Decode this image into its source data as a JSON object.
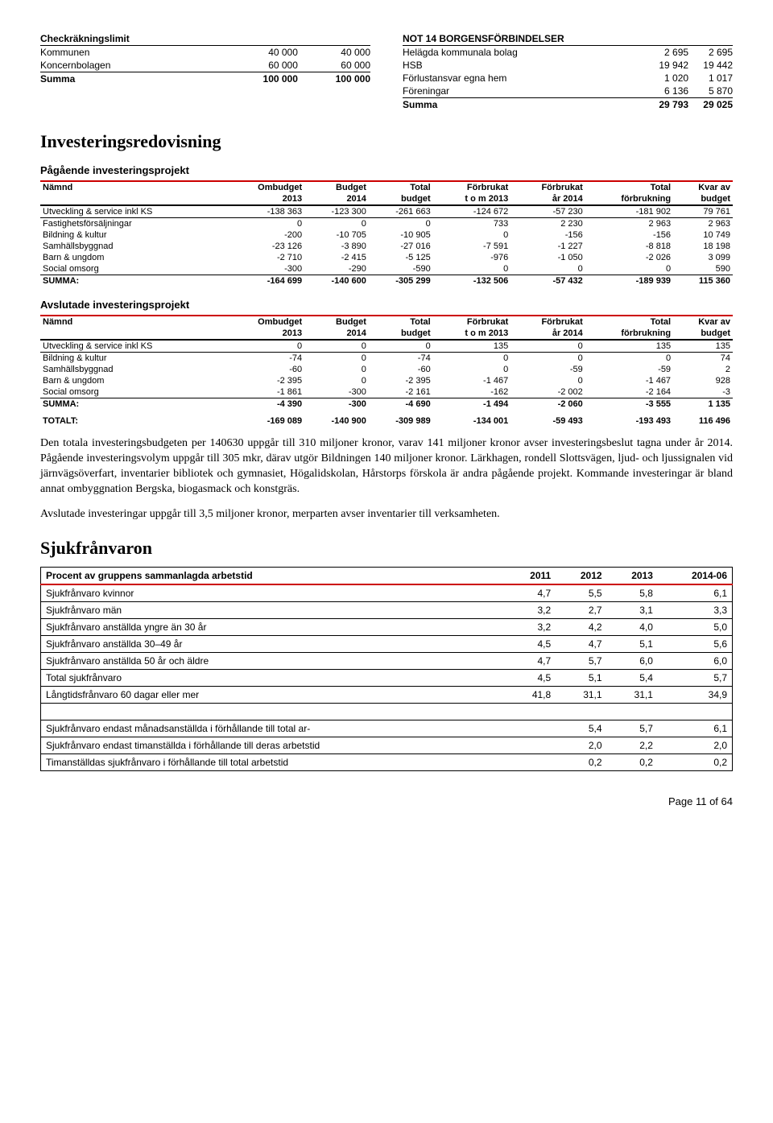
{
  "top_left": {
    "header": "Checkräkningslimit",
    "rows": [
      {
        "label": "Kommunen",
        "v1": "40 000",
        "v2": "40 000"
      },
      {
        "label": "Koncernbolagen",
        "v1": "60 000",
        "v2": "60 000"
      }
    ],
    "sum": {
      "label": "Summa",
      "v1": "100 000",
      "v2": "100 000"
    }
  },
  "top_right": {
    "header": "NOT 14 BORGENSFÖRBINDELSER",
    "rows": [
      {
        "label": "Helägda kommunala bolag",
        "v1": "2 695",
        "v2": "2 695"
      },
      {
        "label": "HSB",
        "v1": "19 942",
        "v2": "19 442"
      },
      {
        "label": "Förlustansvar egna hem",
        "v1": "1 020",
        "v2": "1 017"
      },
      {
        "label": "Föreningar",
        "v1": "6 136",
        "v2": "5 870"
      }
    ],
    "sum": {
      "label": "Summa",
      "v1": "29 793",
      "v2": "29 025"
    }
  },
  "inv_heading": "Investeringsredovisning",
  "pagaende_label": "Pågående investeringsprojekt",
  "avslutade_label": "Avslutade investeringsprojekt",
  "big_headers1": [
    "Nämnd",
    "Ombudget",
    "Budget",
    "Total",
    "Förbrukat",
    "Förbrukat",
    "Total",
    "Kvar av"
  ],
  "big_headers2": [
    "",
    "2013",
    "2014",
    "budget",
    "t o m 2013",
    "år  2014",
    "förbrukning",
    "budget"
  ],
  "pagaende_rows": [
    {
      "n": "Utveckling & service inkl KS",
      "c": [
        "-138 363",
        "-123 300",
        "-261 663",
        "-124 672",
        "-57 230",
        "-181 902",
        "79 761"
      ]
    },
    {
      "n": "Fastighetsförsäljningar",
      "c": [
        "0",
        "0",
        "0",
        "733",
        "2 230",
        "2 963",
        "2 963"
      ]
    },
    {
      "n": "Bildning & kultur",
      "c": [
        "-200",
        "-10 705",
        "-10 905",
        "0",
        "-156",
        "-156",
        "10 749"
      ]
    },
    {
      "n": "Samhällsbyggnad",
      "c": [
        "-23 126",
        "-3 890",
        "-27 016",
        "-7 591",
        "-1 227",
        "-8 818",
        "18 198"
      ]
    },
    {
      "n": "Barn & ungdom",
      "c": [
        "-2 710",
        "-2 415",
        "-5 125",
        "-976",
        "-1 050",
        "-2 026",
        "3 099"
      ]
    },
    {
      "n": "Social omsorg",
      "c": [
        "-300",
        "-290",
        "-590",
        "0",
        "0",
        "0",
        "590"
      ]
    }
  ],
  "pagaende_sum": {
    "n": "SUMMA:",
    "c": [
      "-164 699",
      "-140 600",
      "-305 299",
      "-132 506",
      "-57 432",
      "-189 939",
      "115 360"
    ]
  },
  "avslutade_rows": [
    {
      "n": "Utveckling & service inkl KS",
      "c": [
        "0",
        "0",
        "0",
        "135",
        "0",
        "135",
        "135"
      ]
    },
    {
      "n": "Bildning & kultur",
      "c": [
        "-74",
        "0",
        "-74",
        "0",
        "0",
        "0",
        "74"
      ]
    },
    {
      "n": "Samhällsbyggnad",
      "c": [
        "-60",
        "0",
        "-60",
        "0",
        "-59",
        "-59",
        "2"
      ]
    },
    {
      "n": "Barn & ungdom",
      "c": [
        "-2 395",
        "0",
        "-2 395",
        "-1 467",
        "0",
        "-1 467",
        "928"
      ]
    },
    {
      "n": "Social omsorg",
      "c": [
        "-1 861",
        "-300",
        "-2 161",
        "-162",
        "-2 002",
        "-2 164",
        "-3"
      ]
    }
  ],
  "avslutade_sum": {
    "n": "SUMMA:",
    "c": [
      "-4 390",
      "-300",
      "-4 690",
      "-1 494",
      "-2 060",
      "-3 555",
      "1 135"
    ]
  },
  "totalt": {
    "n": "TOTALT:",
    "c": [
      "-169 089",
      "-140 900",
      "-309 989",
      "-134 001",
      "-59 493",
      "-193 493",
      "116 496"
    ]
  },
  "para1": "Den totala investeringsbudgeten per 140630 uppgår till 310 miljoner kronor, varav 141 miljoner kronor avser investeringsbeslut tagna under år 2014. Pågående investeringsvolym uppgår till 305 mkr, därav utgör Bildningen 140 miljoner kronor. Lärkhagen, rondell Slottsvägen, ljud- och ljussignalen vid järnvägsöverfart, inventarier bibliotek och gymnasiet, Högalidskolan, Hårstorps förskola är andra pågående projekt. Kommande investeringar är bland annat ombyggnation Bergska, biogasmack och konstgräs.",
  "para2": "Avslutade investeringar uppgår till 3,5 miljoner kronor, merparten avser inventarier till verksamheten.",
  "sjuk_heading": "Sjukfrånvaron",
  "sjuk_headers": [
    "Procent av gruppens sammanlagda arbetstid",
    "2011",
    "2012",
    "2013",
    "2014-06"
  ],
  "sjuk_rows1": [
    {
      "n": "Sjukfrånvaro kvinnor",
      "c": [
        "4,7",
        "5,5",
        "5,8",
        "6,1"
      ]
    },
    {
      "n": "Sjukfrånvaro män",
      "c": [
        "3,2",
        "2,7",
        "3,1",
        "3,3"
      ]
    },
    {
      "n": "Sjukfrånvaro anställda yngre än 30 år",
      "c": [
        "3,2",
        "4,2",
        "4,0",
        "5,0"
      ]
    },
    {
      "n": "Sjukfrånvaro anställda 30–49 år",
      "c": [
        "4,5",
        "4,7",
        "5,1",
        "5,6"
      ]
    },
    {
      "n": "Sjukfrånvaro anställda 50 år och äldre",
      "c": [
        "4,7",
        "5,7",
        "6,0",
        "6,0"
      ]
    },
    {
      "n": "Total sjukfrånvaro",
      "c": [
        "4,5",
        "5,1",
        "5,4",
        "5,7"
      ]
    },
    {
      "n": "Långtidsfrånvaro 60 dagar eller mer",
      "c": [
        "41,8",
        "31,1",
        "31,1",
        "34,9"
      ]
    }
  ],
  "sjuk_rows2": [
    {
      "n": "Sjukfrånvaro endast månadsanställda i förhållande till total ar-",
      "c": [
        "",
        "5,4",
        "5,7",
        "6,1"
      ]
    },
    {
      "n": "Sjukfrånvaro endast timanställda i förhållande till deras arbetstid",
      "c": [
        "",
        "2,0",
        "2,2",
        "2,0"
      ]
    },
    {
      "n": "Timanställdas sjukfrånvaro i förhållande till total arbetstid",
      "c": [
        "",
        "0,2",
        "0,2",
        "0,2"
      ]
    }
  ],
  "page_num": "Page 11 of 64"
}
